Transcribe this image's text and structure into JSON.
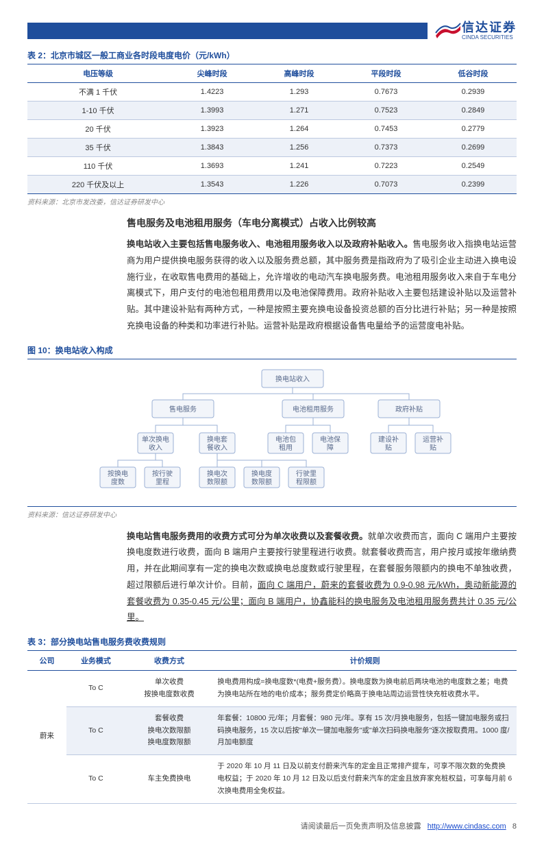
{
  "logo": {
    "cn": "信达证券",
    "en": "CINDA SECURITIES"
  },
  "table2": {
    "caption": "表 2：北京市城区一般工商业各时段电度电价（元/kWh）",
    "columns": [
      "电压等级",
      "尖峰时段",
      "高峰时段",
      "平段时段",
      "低谷时段"
    ],
    "rows": [
      [
        "不满 1 千伏",
        "1.4223",
        "1.293",
        "0.7673",
        "0.2939"
      ],
      [
        "1-10 千伏",
        "1.3993",
        "1.271",
        "0.7523",
        "0.2849"
      ],
      [
        "20 千伏",
        "1.3923",
        "1.264",
        "0.7453",
        "0.2779"
      ],
      [
        "35 千伏",
        "1.3843",
        "1.256",
        "0.7373",
        "0.2699"
      ],
      [
        "110 千伏",
        "1.3693",
        "1.241",
        "0.7223",
        "0.2549"
      ],
      [
        "220 千伏及以上",
        "1.3543",
        "1.226",
        "0.7073",
        "0.2399"
      ]
    ],
    "source": "资料来源：北京市发改委，信达证券研发中心"
  },
  "section1": {
    "subhead": "售电服务及电池租用服务（车电分离模式）占收入比例较高",
    "para_bold": "换电站收入主要包括售电服务收入、电池租用服务收入以及政府补贴收入。",
    "para_rest": "售电服务收入指换电站运营商为用户提供换电服务获得的收入以及服务费总额，其中服务费是指政府为了吸引企业主动进入换电设施行业，在收取售电费用的基础上，允许增收的电动汽车换电服务费。电池租用服务收入来自于车电分离模式下，用户支付的电池包租用费用以及电池保障费用。政府补贴收入主要包括建设补贴以及运营补贴。其中建设补贴有两种方式，一种是按照主要充换电设备投资总额的百分比进行补贴；另一种是按照充换电设备的种类和功率进行补贴。运营补贴是政府根据设备售电量给予的运营度电补贴。"
  },
  "fig10": {
    "caption": "图 10：换电站收入构成",
    "source": "资料来源：信达证券研发中心",
    "nodes": {
      "root": "换电站收入",
      "l1a": "售电服务",
      "l1b": "电池租用服务",
      "l1c": "政府补贴",
      "l2a": "单次换电\n收入",
      "l2b": "换电套\n餐收入",
      "l2c": "电池包\n租用",
      "l2d": "电池保\n障",
      "l2e": "建设补\n贴",
      "l2f": "运营补\n贴",
      "l3a": "按换电\n度数",
      "l3b": "按行驶\n里程",
      "l3c": "换电次\n数限额",
      "l3d": "换电度\n数限额",
      "l3e": "行驶里\n程限额"
    },
    "style": {
      "box_fill": "#f2f5fa",
      "box_stroke": "#9bb0d4",
      "text_color": "#5a6b8c",
      "line_color": "#9bb0d4",
      "w_wide": 90,
      "w_med": 52,
      "h": 26,
      "h2": 30
    }
  },
  "section2": {
    "para_bold": "换电站售电服务费用的收费方式可分为单次收费以及套餐收费。",
    "para_rest_a": "就单次收费而言，面向 C 端用户主要按换电度数进行收费，面向 B 端用户主要按行驶里程进行收费。就套餐收费而言，用户按月或按年缴纳费用，并在此期间享有一定的换电次数或换电总度数或行驶里程，在套餐服务限额内的换电不单独收费，超过限额后进行单次计价。目前，",
    "para_ul": "面向 C 端用户，蔚来的套餐收费为 0.9-0.98 元/kWh，奥动新能源的套餐收费为 0.35-0.45 元/公里；面向 B 端用户，协鑫能科的换电服务及电池租用服务费共计 0.35 元/公里。"
  },
  "table3": {
    "caption": "表 3：部分换电站售电服务费收费规则",
    "columns": [
      "公司",
      "业务模式",
      "收费方式",
      "计价规则"
    ],
    "col_widths": [
      "8%",
      "12%",
      "18%",
      "62%"
    ],
    "company": "蔚来",
    "rows": [
      {
        "mode": "To C",
        "method": "单次收费\n按换电度数收费",
        "rule": "换电费用构成=换电度数*(电费+服务费）。换电度数为换电前后两块电池的电度数之差；电费为换电站所在地的电价成本；服务费定价略高于换电站周边运营性快充桩收费水平。",
        "shade": false
      },
      {
        "mode": "To C",
        "method": "套餐收费\n换电次数限额\n换电度数限额",
        "rule": "年套餐：10800 元/年；月套餐：980 元/年。享有 15 次/月换电服务，包括一键加电服务或扫码换电服务，15 次以后按\"单次一键加电服务\"或\"单次扫码换电服务\"逐次按取费用。1000 度/月加电额度",
        "shade": true
      },
      {
        "mode": "To C",
        "method": "车主免费换电",
        "rule": "于 2020 年 10 月 11 日及以前支付蔚来汽车的定金且正常排产提车，可享不限次数的免费换电权益；于 2020 年 10 月 12 日及以后支付蔚来汽车的定金且放弃家充桩权益，可享每月前 6 次换电费用全免权益。",
        "shade": false
      }
    ]
  },
  "footer": {
    "text": "请阅读最后一页免责声明及信息披露",
    "link": "http://www.cindasc.com",
    "page": "8"
  }
}
